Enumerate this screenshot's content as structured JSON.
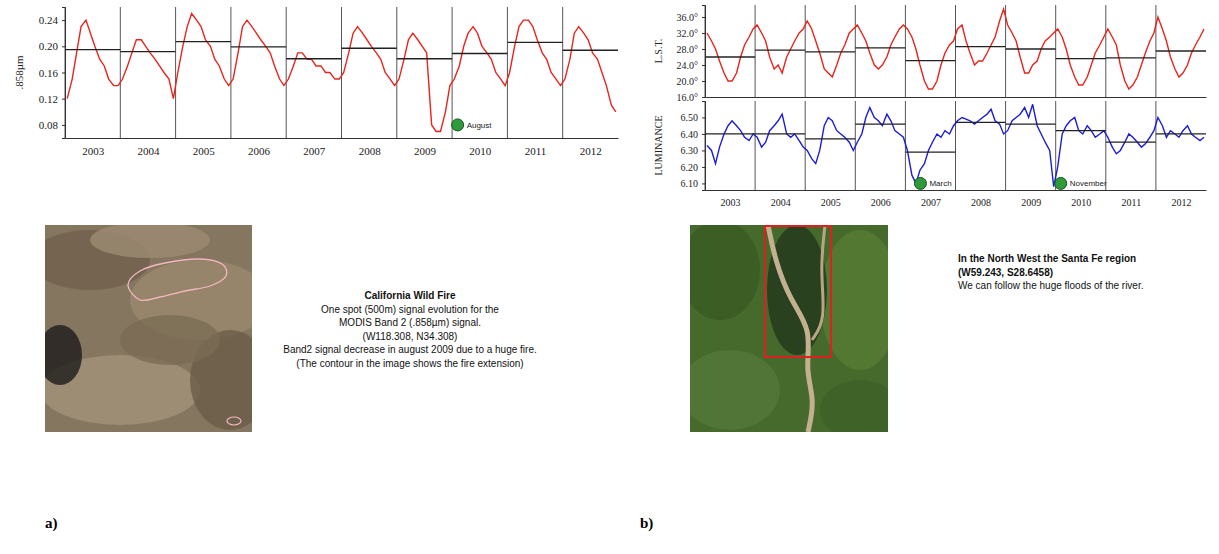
{
  "chart_data": [
    {
      "type": "line",
      "y_label": ".858µm",
      "x": [
        2003.04,
        2003.13,
        2003.21,
        2003.29,
        2003.38,
        2003.46,
        2003.54,
        2003.63,
        2003.71,
        2003.79,
        2003.88,
        2003.96,
        2004.04,
        2004.13,
        2004.21,
        2004.29,
        2004.38,
        2004.46,
        2004.54,
        2004.63,
        2004.71,
        2004.79,
        2004.88,
        2004.96,
        2005.04,
        2005.13,
        2005.21,
        2005.29,
        2005.38,
        2005.46,
        2005.54,
        2005.63,
        2005.71,
        2005.79,
        2005.88,
        2005.96,
        2006.04,
        2006.13,
        2006.21,
        2006.29,
        2006.38,
        2006.46,
        2006.54,
        2006.63,
        2006.71,
        2006.79,
        2006.88,
        2006.96,
        2007.04,
        2007.13,
        2007.21,
        2007.29,
        2007.38,
        2007.46,
        2007.54,
        2007.63,
        2007.71,
        2007.79,
        2007.88,
        2007.96,
        2008.04,
        2008.13,
        2008.21,
        2008.29,
        2008.38,
        2008.46,
        2008.54,
        2008.63,
        2008.71,
        2008.79,
        2008.88,
        2008.96,
        2009.04,
        2009.13,
        2009.21,
        2009.29,
        2009.38,
        2009.46,
        2009.54,
        2009.63,
        2009.71,
        2009.79,
        2009.88,
        2009.96,
        2010.04,
        2010.13,
        2010.21,
        2010.29,
        2010.38,
        2010.46,
        2010.54,
        2010.63,
        2010.71,
        2010.79,
        2010.88,
        2010.96,
        2011.04,
        2011.13,
        2011.21,
        2011.29,
        2011.38,
        2011.46,
        2011.54,
        2011.63,
        2011.71,
        2011.79,
        2011.88,
        2011.96,
        2012.04,
        2012.13,
        2012.21,
        2012.29,
        2012.38,
        2012.46,
        2012.54,
        2012.63,
        2012.71,
        2012.79,
        2012.88,
        2012.96
      ],
      "xlim": [
        2003,
        2013
      ],
      "xticks": [
        2003,
        2004,
        2005,
        2006,
        2007,
        2008,
        2009,
        2010,
        2011,
        2012
      ],
      "ylim": [
        0.06,
        0.26
      ],
      "yticks": [
        0.08,
        0.12,
        0.16,
        {
          "value": 0.2,
          "label": "0.20"
        },
        0.24
      ],
      "grid": "x",
      "series": [
        {
          "color": "#e8241c",
          "values": [
            0.12,
            0.15,
            0.19,
            0.23,
            0.24,
            0.22,
            0.2,
            0.18,
            0.17,
            0.15,
            0.14,
            0.14,
            0.15,
            0.17,
            0.19,
            0.21,
            0.21,
            0.2,
            0.19,
            0.18,
            0.17,
            0.16,
            0.15,
            0.12,
            0.16,
            0.2,
            0.23,
            0.25,
            0.24,
            0.23,
            0.21,
            0.2,
            0.18,
            0.17,
            0.15,
            0.14,
            0.15,
            0.19,
            0.23,
            0.24,
            0.23,
            0.22,
            0.21,
            0.2,
            0.19,
            0.17,
            0.15,
            0.14,
            0.15,
            0.17,
            0.19,
            0.19,
            0.18,
            0.18,
            0.17,
            0.17,
            0.16,
            0.16,
            0.15,
            0.15,
            0.16,
            0.19,
            0.22,
            0.23,
            0.22,
            0.21,
            0.2,
            0.19,
            0.18,
            0.16,
            0.15,
            0.14,
            0.15,
            0.18,
            0.21,
            0.22,
            0.21,
            0.2,
            0.19,
            0.08,
            0.07,
            0.07,
            0.1,
            0.14,
            0.15,
            0.17,
            0.2,
            0.22,
            0.23,
            0.22,
            0.2,
            0.19,
            0.18,
            0.16,
            0.15,
            0.14,
            0.16,
            0.2,
            0.23,
            0.24,
            0.24,
            0.23,
            0.21,
            0.19,
            0.18,
            0.16,
            0.15,
            0.14,
            0.15,
            0.18,
            0.22,
            0.23,
            0.22,
            0.21,
            0.19,
            0.18,
            0.16,
            0.14,
            0.11,
            0.1
          ],
          "annual_means": [
            0.195,
            0.192,
            0.207,
            0.199,
            0.181,
            0.197,
            0.181,
            0.189,
            0.206,
            0.194
          ]
        }
      ],
      "annotations": [
        {
          "text": "August",
          "x": 2010.1,
          "y": 0.08
        }
      ]
    },
    {
      "type": "line",
      "y_label": "L.S.T.",
      "x": [
        2003.04,
        2003.13,
        2003.21,
        2003.29,
        2003.38,
        2003.46,
        2003.54,
        2003.63,
        2003.71,
        2003.79,
        2003.88,
        2003.96,
        2004.04,
        2004.13,
        2004.21,
        2004.29,
        2004.38,
        2004.46,
        2004.54,
        2004.63,
        2004.71,
        2004.79,
        2004.88,
        2004.96,
        2005.04,
        2005.13,
        2005.21,
        2005.29,
        2005.38,
        2005.46,
        2005.54,
        2005.63,
        2005.71,
        2005.79,
        2005.88,
        2005.96,
        2006.04,
        2006.13,
        2006.21,
        2006.29,
        2006.38,
        2006.46,
        2006.54,
        2006.63,
        2006.71,
        2006.79,
        2006.88,
        2006.96,
        2007.04,
        2007.13,
        2007.21,
        2007.29,
        2007.38,
        2007.46,
        2007.54,
        2007.63,
        2007.71,
        2007.79,
        2007.88,
        2007.96,
        2008.04,
        2008.13,
        2008.21,
        2008.29,
        2008.38,
        2008.46,
        2008.54,
        2008.63,
        2008.71,
        2008.79,
        2008.88,
        2008.96,
        2009.04,
        2009.13,
        2009.21,
        2009.29,
        2009.38,
        2009.46,
        2009.54,
        2009.63,
        2009.71,
        2009.79,
        2009.88,
        2009.96,
        2010.04,
        2010.13,
        2010.21,
        2010.29,
        2010.38,
        2010.46,
        2010.54,
        2010.63,
        2010.71,
        2010.79,
        2010.88,
        2010.96,
        2011.04,
        2011.13,
        2011.21,
        2011.29,
        2011.38,
        2011.46,
        2011.54,
        2011.63,
        2011.71,
        2011.79,
        2011.88,
        2011.96,
        2012.04,
        2012.13,
        2012.21,
        2012.29,
        2012.38,
        2012.46,
        2012.54,
        2012.63,
        2012.71,
        2012.79,
        2012.88,
        2012.96
      ],
      "xlim": [
        2003,
        2013
      ],
      "xticks": [
        2003,
        2004,
        2005,
        2006,
        2007,
        2008,
        2009,
        2010,
        2011,
        2012
      ],
      "tick_labels": "y",
      "ylim": [
        16,
        39
      ],
      "yticks": [
        {
          "value": 16,
          "label": "16.0°"
        },
        {
          "value": 20,
          "label": "20.0°"
        },
        {
          "value": 24,
          "label": "24.0°"
        },
        {
          "value": 28,
          "label": "28.0°"
        },
        {
          "value": 32,
          "label": "32.0°"
        },
        {
          "value": 36,
          "label": "36.0°"
        }
      ],
      "grid": "x",
      "series": [
        {
          "color": "#e8241c",
          "values": [
            32,
            30,
            28,
            25,
            22,
            20,
            20,
            22,
            26,
            29,
            31,
            33,
            34,
            32,
            30,
            26,
            23,
            24,
            22,
            26,
            28,
            30,
            32,
            33,
            35,
            33,
            30,
            27,
            23,
            22,
            21,
            24,
            27,
            29,
            32,
            33,
            34,
            32,
            30,
            27,
            24,
            23,
            24,
            26,
            29,
            31,
            33,
            34,
            33,
            31,
            28,
            24,
            20,
            18,
            18,
            20,
            24,
            27,
            29,
            30,
            33,
            34,
            30,
            27,
            24,
            25,
            25,
            27,
            29,
            31,
            35,
            38,
            34,
            32,
            30,
            26,
            22,
            22,
            24,
            25,
            28,
            30,
            31,
            32,
            33,
            31,
            28,
            24,
            21,
            19,
            19,
            21,
            24,
            27,
            29,
            31,
            33,
            31,
            29,
            24,
            20,
            18,
            19,
            21,
            24,
            27,
            30,
            32,
            36,
            33,
            30,
            26,
            23,
            21,
            22,
            24,
            27,
            29,
            31,
            33
          ],
          "annual_means": [
            26.0,
            27.7,
            27.3,
            28.3,
            25.1,
            28.6,
            28.0,
            25.6,
            25.8,
            27.5
          ]
        }
      ]
    },
    {
      "type": "line",
      "y_label": "LUMINANCE",
      "x": [
        2003.04,
        2003.13,
        2003.21,
        2003.29,
        2003.38,
        2003.46,
        2003.54,
        2003.63,
        2003.71,
        2003.79,
        2003.88,
        2003.96,
        2004.04,
        2004.13,
        2004.21,
        2004.29,
        2004.38,
        2004.46,
        2004.54,
        2004.63,
        2004.71,
        2004.79,
        2004.88,
        2004.96,
        2005.04,
        2005.13,
        2005.21,
        2005.29,
        2005.38,
        2005.46,
        2005.54,
        2005.63,
        2005.71,
        2005.79,
        2005.88,
        2005.96,
        2006.04,
        2006.13,
        2006.21,
        2006.29,
        2006.38,
        2006.46,
        2006.54,
        2006.63,
        2006.71,
        2006.79,
        2006.88,
        2006.96,
        2007.04,
        2007.13,
        2007.21,
        2007.29,
        2007.38,
        2007.46,
        2007.54,
        2007.63,
        2007.71,
        2007.79,
        2007.88,
        2007.96,
        2008.04,
        2008.13,
        2008.21,
        2008.29,
        2008.38,
        2008.46,
        2008.54,
        2008.63,
        2008.71,
        2008.79,
        2008.88,
        2008.96,
        2009.04,
        2009.13,
        2009.21,
        2009.29,
        2009.38,
        2009.46,
        2009.54,
        2009.63,
        2009.71,
        2009.79,
        2009.88,
        2009.96,
        2010.04,
        2010.13,
        2010.21,
        2010.29,
        2010.38,
        2010.46,
        2010.54,
        2010.63,
        2010.71,
        2010.79,
        2010.88,
        2010.96,
        2011.04,
        2011.13,
        2011.21,
        2011.29,
        2011.38,
        2011.46,
        2011.54,
        2011.63,
        2011.71,
        2011.79,
        2011.88,
        2011.96,
        2012.04,
        2012.13,
        2012.21,
        2012.29,
        2012.38,
        2012.46,
        2012.54,
        2012.63,
        2012.71,
        2012.79,
        2012.88,
        2012.96
      ],
      "xlim": [
        2003,
        2013
      ],
      "xticks": [
        2003,
        2004,
        2005,
        2006,
        2007,
        2008,
        2009,
        2010,
        2011,
        2012
      ],
      "ylim": [
        6.06,
        6.6
      ],
      "yticks": [
        {
          "value": 6.1,
          "label": "6.10"
        },
        {
          "value": 6.2,
          "label": "6.20"
        },
        {
          "value": 6.3,
          "label": "6.30"
        },
        {
          "value": 6.4,
          "label": "6.40"
        },
        {
          "value": 6.5,
          "label": "6.50"
        }
      ],
      "grid": "x",
      "series": [
        {
          "color": "#1c1cd8",
          "values": [
            6.33,
            6.3,
            6.22,
            6.32,
            6.4,
            6.45,
            6.48,
            6.45,
            6.42,
            6.38,
            6.36,
            6.4,
            6.38,
            6.32,
            6.35,
            6.42,
            6.45,
            6.48,
            6.52,
            6.4,
            6.38,
            6.4,
            6.36,
            6.32,
            6.3,
            6.25,
            6.22,
            6.3,
            6.45,
            6.5,
            6.48,
            6.42,
            6.4,
            6.38,
            6.35,
            6.3,
            6.35,
            6.4,
            6.5,
            6.56,
            6.5,
            6.48,
            6.45,
            6.52,
            6.48,
            6.42,
            6.4,
            6.38,
            6.3,
            6.15,
            6.1,
            6.18,
            6.22,
            6.3,
            6.35,
            6.4,
            6.38,
            6.42,
            6.4,
            6.45,
            6.48,
            6.5,
            6.49,
            6.48,
            6.46,
            6.48,
            6.5,
            6.52,
            6.55,
            6.48,
            6.46,
            6.4,
            6.42,
            6.48,
            6.5,
            6.52,
            6.56,
            6.5,
            6.58,
            6.45,
            6.4,
            6.35,
            6.3,
            6.08,
            6.2,
            6.4,
            6.45,
            6.48,
            6.5,
            6.42,
            6.4,
            6.45,
            6.42,
            6.38,
            6.4,
            6.42,
            6.38,
            6.32,
            6.28,
            6.3,
            6.35,
            6.4,
            6.38,
            6.35,
            6.32,
            6.34,
            6.38,
            6.42,
            6.5,
            6.45,
            6.38,
            6.42,
            6.4,
            6.38,
            6.42,
            6.45,
            6.4,
            6.38,
            6.36,
            6.38
          ],
          "annual_means": [
            6.4,
            6.4,
            6.37,
            6.46,
            6.29,
            6.47,
            6.46,
            6.42,
            6.35,
            6.4
          ]
        }
      ],
      "annotations": [
        {
          "text": "March",
          "x": 2007.3,
          "y": 6.1
        },
        {
          "text": "November",
          "x": 2010.1,
          "y": 6.1
        }
      ]
    }
  ],
  "panels": [
    {
      "label": "a)",
      "caption": {
        "title": "California Wild Fire",
        "lines": [
          "One spot (500m) signal evolution for the",
          "MODIS Band 2 (.858µm) signal.",
          "(W118.308, N34.308)",
          "Band2 signal decrease in august 2009 due to a huge fire.",
          "(The contour in the image shows the fire extension)"
        ]
      }
    },
    {
      "label": "b)",
      "caption": {
        "title_lines": [
          "In the North West the Santa Fe region",
          "(W59.243, S28.6458)"
        ],
        "lines": [
          "We can follow the huge floods of the river."
        ]
      }
    }
  ]
}
